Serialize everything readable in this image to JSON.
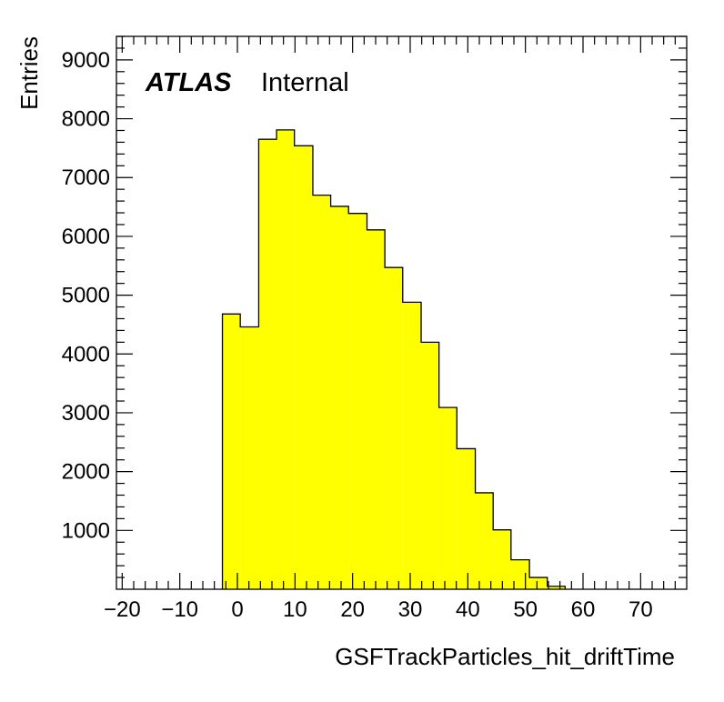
{
  "chart_data": {
    "type": "bar",
    "histogram": true,
    "xlabel": "GSFTrackParticles_hit_driftTime",
    "ylabel": "Entries",
    "xlim": [
      -21,
      78
    ],
    "ylim": [
      0,
      9400
    ],
    "xticks": [
      -20,
      -10,
      0,
      10,
      20,
      30,
      40,
      50,
      60,
      70
    ],
    "xtick_labels": [
      "−20",
      "−10",
      "0",
      "10",
      "20",
      "30",
      "40",
      "50",
      "60",
      "70"
    ],
    "yticks": [
      1000,
      2000,
      3000,
      4000,
      5000,
      6000,
      7000,
      8000,
      9000
    ],
    "ytick_labels": [
      "1000",
      "2000",
      "3000",
      "4000",
      "5000",
      "6000",
      "7000",
      "8000",
      "9000"
    ],
    "bin_edges": [
      -2.6,
      0.5,
      3.7,
      6.8,
      9.9,
      13.1,
      16.2,
      19.3,
      22.5,
      25.6,
      28.7,
      31.9,
      35.0,
      38.1,
      41.3,
      44.4,
      47.5,
      50.7,
      53.8,
      56.9
    ],
    "values": [
      4680,
      4460,
      7650,
      7810,
      7540,
      6700,
      6510,
      6390,
      6110,
      5470,
      4880,
      4200,
      3090,
      2390,
      1640,
      1010,
      500,
      200,
      50
    ],
    "fill_color": "#ffff00",
    "edge_color": "#000000",
    "grid": false
  },
  "labels": {
    "atlas": "ATLAS",
    "internal": "Internal"
  }
}
